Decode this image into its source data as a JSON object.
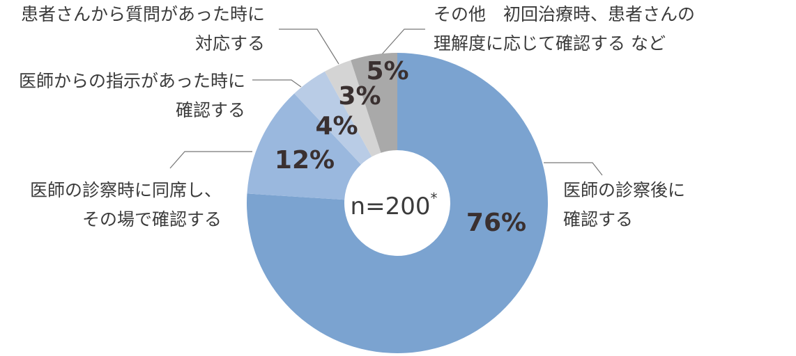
{
  "chart_data": {
    "type": "donut",
    "categories": [
      [
        "医師の診察後に",
        "確認する"
      ],
      [
        "医師の診察時に同席し、",
        "その場で確認する"
      ],
      [
        "医師からの指示があった時に",
        "確認する"
      ],
      [
        "患者さんから質問があった時に",
        "対応する"
      ],
      [
        "その他　初回治療時、患者さんの",
        "理解度に応じて確認する など"
      ]
    ],
    "values": [
      76,
      12,
      4,
      3,
      5
    ],
    "value_labels": [
      "76%",
      "12%",
      "4%",
      "3%",
      "5%"
    ],
    "colors": [
      "#7ba3d0",
      "#9ab8de",
      "#b9cce6",
      "#d4d4d4",
      "#a9a9a9"
    ],
    "center_label": "n=200",
    "center_note": "*"
  }
}
